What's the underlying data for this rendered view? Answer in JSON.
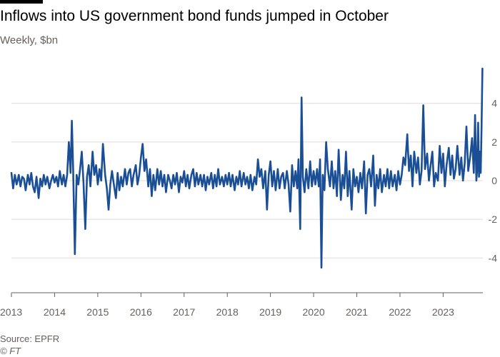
{
  "title": "Inflows into US government bond funds jumped in October",
  "subtitle": "Weekly, $bn",
  "source": "Source: EPFR",
  "credit": "© FT",
  "colors": {
    "line": "#1a4f96",
    "grid": "#e0dcd8",
    "axis": "#66605c",
    "text": "#66605c"
  },
  "chart_data": {
    "type": "line",
    "title": "Inflows into US government bond funds jumped in October",
    "subtitle": "Weekly, $bn",
    "xlabel": "",
    "ylabel": "",
    "xlim": [
      2013.0,
      2023.92
    ],
    "ylim": [
      -5.8,
      5.8
    ],
    "y_ticks": [
      -4,
      -2,
      0,
      2,
      4
    ],
    "y_tick_labels": [
      "-4",
      "-2",
      "0",
      "2",
      "4"
    ],
    "x_ticks": [
      2013,
      2014,
      2015,
      2016,
      2017,
      2018,
      2019,
      2020,
      2021,
      2022,
      2023
    ],
    "x_tick_labels": [
      "2013",
      "2014",
      "2015",
      "2016",
      "2017",
      "2018",
      "2019",
      "2020",
      "2021",
      "2022",
      "2023"
    ],
    "y_axis_side": "right",
    "grid": true,
    "series": [
      {
        "name": "",
        "points": [
          [
            2013.0,
            0.4
          ],
          [
            2013.04,
            -0.4
          ],
          [
            2013.08,
            0.3
          ],
          [
            2013.12,
            -0.2
          ],
          [
            2013.17,
            0.3
          ],
          [
            2013.21,
            -0.3
          ],
          [
            2013.25,
            0.2
          ],
          [
            2013.29,
            0.1
          ],
          [
            2013.33,
            -0.5
          ],
          [
            2013.38,
            0.3
          ],
          [
            2013.42,
            -0.2
          ],
          [
            2013.46,
            0.4
          ],
          [
            2013.5,
            -0.3
          ],
          [
            2013.54,
            -0.6
          ],
          [
            2013.58,
            0.2
          ],
          [
            2013.63,
            -0.9
          ],
          [
            2013.67,
            0.1
          ],
          [
            2013.71,
            -0.3
          ],
          [
            2013.75,
            0.3
          ],
          [
            2013.79,
            -0.2
          ],
          [
            2013.83,
            0.2
          ],
          [
            2013.88,
            -0.4
          ],
          [
            2013.92,
            0.0
          ],
          [
            2013.96,
            0.3
          ],
          [
            2014.0,
            -0.1
          ],
          [
            2014.04,
            0.2
          ],
          [
            2014.08,
            -0.3
          ],
          [
            2014.12,
            0.5
          ],
          [
            2014.17,
            -0.2
          ],
          [
            2014.21,
            0.3
          ],
          [
            2014.25,
            -0.3
          ],
          [
            2014.29,
            0.3
          ],
          [
            2014.33,
            2.0
          ],
          [
            2014.37,
            0.4
          ],
          [
            2014.4,
            3.1
          ],
          [
            2014.43,
            0.6
          ],
          [
            2014.47,
            -3.8
          ],
          [
            2014.51,
            0.3
          ],
          [
            2014.55,
            -0.2
          ],
          [
            2014.59,
            0.6
          ],
          [
            2014.63,
            1.5
          ],
          [
            2014.67,
            -0.1
          ],
          [
            2014.71,
            -2.5
          ],
          [
            2014.75,
            0.2
          ],
          [
            2014.79,
            0.8
          ],
          [
            2014.83,
            -0.3
          ],
          [
            2014.88,
            1.5
          ],
          [
            2014.92,
            0.3
          ],
          [
            2014.96,
            0.8
          ],
          [
            2015.0,
            -0.2
          ],
          [
            2015.04,
            0.6
          ],
          [
            2015.08,
            0.0
          ],
          [
            2015.12,
            1.9
          ],
          [
            2015.17,
            0.3
          ],
          [
            2015.21,
            -0.4
          ],
          [
            2015.25,
            -1.5
          ],
          [
            2015.29,
            -0.2
          ],
          [
            2015.33,
            0.5
          ],
          [
            2015.38,
            -0.3
          ],
          [
            2015.42,
            -0.9
          ],
          [
            2015.46,
            0.4
          ],
          [
            2015.5,
            -0.5
          ],
          [
            2015.54,
            0.2
          ],
          [
            2015.58,
            -0.3
          ],
          [
            2015.63,
            0.6
          ],
          [
            2015.67,
            -0.2
          ],
          [
            2015.71,
            0.4
          ],
          [
            2015.75,
            0.6
          ],
          [
            2015.79,
            -0.3
          ],
          [
            2015.83,
            0.3
          ],
          [
            2015.88,
            0.8
          ],
          [
            2015.92,
            -0.2
          ],
          [
            2015.96,
            0.3
          ],
          [
            2016.0,
            1.2
          ],
          [
            2016.04,
            1.9
          ],
          [
            2016.08,
            0.5
          ],
          [
            2016.12,
            1.1
          ],
          [
            2016.17,
            -0.3
          ],
          [
            2016.21,
            0.6
          ],
          [
            2016.25,
            -0.8
          ],
          [
            2016.29,
            0.3
          ],
          [
            2016.33,
            -0.5
          ],
          [
            2016.38,
            0.6
          ],
          [
            2016.42,
            -0.2
          ],
          [
            2016.46,
            0.5
          ],
          [
            2016.5,
            -0.3
          ],
          [
            2016.54,
            0.3
          ],
          [
            2016.58,
            -0.6
          ],
          [
            2016.63,
            0.3
          ],
          [
            2016.67,
            0.0
          ],
          [
            2016.71,
            -0.4
          ],
          [
            2016.75,
            0.3
          ],
          [
            2016.79,
            -0.2
          ],
          [
            2016.83,
            0.4
          ],
          [
            2016.88,
            -0.6
          ],
          [
            2016.92,
            0.2
          ],
          [
            2016.96,
            -0.1
          ],
          [
            2017.0,
            0.5
          ],
          [
            2017.04,
            -0.3
          ],
          [
            2017.08,
            0.3
          ],
          [
            2017.12,
            -0.4
          ],
          [
            2017.17,
            0.3
          ],
          [
            2017.21,
            0.6
          ],
          [
            2017.25,
            -0.3
          ],
          [
            2017.29,
            0.4
          ],
          [
            2017.33,
            -0.2
          ],
          [
            2017.38,
            0.3
          ],
          [
            2017.42,
            -0.3
          ],
          [
            2017.46,
            0.3
          ],
          [
            2017.5,
            -0.5
          ],
          [
            2017.54,
            0.2
          ],
          [
            2017.58,
            -0.2
          ],
          [
            2017.63,
            0.4
          ],
          [
            2017.67,
            -0.4
          ],
          [
            2017.71,
            0.3
          ],
          [
            2017.75,
            -0.3
          ],
          [
            2017.79,
            0.6
          ],
          [
            2017.83,
            -0.2
          ],
          [
            2017.88,
            0.2
          ],
          [
            2017.92,
            -0.3
          ],
          [
            2017.96,
            0.3
          ],
          [
            2018.0,
            -0.2
          ],
          [
            2018.04,
            0.4
          ],
          [
            2018.08,
            -0.3
          ],
          [
            2018.12,
            0.3
          ],
          [
            2018.17,
            -0.5
          ],
          [
            2018.21,
            0.2
          ],
          [
            2018.25,
            -0.2
          ],
          [
            2018.29,
            0.5
          ],
          [
            2018.33,
            -0.3
          ],
          [
            2018.38,
            0.4
          ],
          [
            2018.42,
            -0.2
          ],
          [
            2018.46,
            0.2
          ],
          [
            2018.5,
            -0.4
          ],
          [
            2018.54,
            0.3
          ],
          [
            2018.58,
            -0.5
          ],
          [
            2018.63,
            0.2
          ],
          [
            2018.67,
            -0.2
          ],
          [
            2018.71,
            1.1
          ],
          [
            2018.75,
            0.2
          ],
          [
            2018.79,
            0.6
          ],
          [
            2018.83,
            -0.4
          ],
          [
            2018.88,
            0.5
          ],
          [
            2018.92,
            -1.5
          ],
          [
            2018.96,
            0.3
          ],
          [
            2019.0,
            1.0
          ],
          [
            2019.04,
            -0.3
          ],
          [
            2019.08,
            0.5
          ],
          [
            2019.12,
            -0.5
          ],
          [
            2019.17,
            0.6
          ],
          [
            2019.21,
            -0.4
          ],
          [
            2019.25,
            0.2
          ],
          [
            2019.29,
            0.4
          ],
          [
            2019.33,
            -0.4
          ],
          [
            2019.38,
            0.5
          ],
          [
            2019.42,
            -0.2
          ],
          [
            2019.46,
            -1.6
          ],
          [
            2019.5,
            0.8
          ],
          [
            2019.54,
            -0.3
          ],
          [
            2019.58,
            0.5
          ],
          [
            2019.62,
            -0.4
          ],
          [
            2019.65,
            1.1
          ],
          [
            2019.69,
            -2.5
          ],
          [
            2019.72,
            4.3
          ],
          [
            2019.75,
            0.2
          ],
          [
            2019.79,
            -0.6
          ],
          [
            2019.83,
            0.6
          ],
          [
            2019.88,
            -0.4
          ],
          [
            2019.92,
            1.0
          ],
          [
            2019.96,
            -0.3
          ],
          [
            2020.0,
            0.5
          ],
          [
            2020.04,
            -0.2
          ],
          [
            2020.08,
            0.6
          ],
          [
            2020.12,
            -0.3
          ],
          [
            2020.15,
            1.1
          ],
          [
            2020.18,
            -4.5
          ],
          [
            2020.21,
            0.3
          ],
          [
            2020.25,
            -0.5
          ],
          [
            2020.29,
            2.0
          ],
          [
            2020.33,
            0.6
          ],
          [
            2020.38,
            -0.3
          ],
          [
            2020.42,
            1.0
          ],
          [
            2020.46,
            -0.4
          ],
          [
            2020.5,
            0.5
          ],
          [
            2020.54,
            -0.8
          ],
          [
            2020.58,
            1.6
          ],
          [
            2020.63,
            -1.0
          ],
          [
            2020.67,
            0.3
          ],
          [
            2020.71,
            -0.4
          ],
          [
            2020.75,
            1.5
          ],
          [
            2020.79,
            -0.8
          ],
          [
            2020.83,
            0.5
          ],
          [
            2020.88,
            -1.5
          ],
          [
            2020.92,
            0.6
          ],
          [
            2020.96,
            -0.3
          ],
          [
            2021.0,
            0.2
          ],
          [
            2021.04,
            -0.6
          ],
          [
            2021.08,
            0.4
          ],
          [
            2021.12,
            -0.4
          ],
          [
            2021.17,
            1.0
          ],
          [
            2021.21,
            -1.7
          ],
          [
            2021.25,
            0.3
          ],
          [
            2021.29,
            0.6
          ],
          [
            2021.33,
            -0.3
          ],
          [
            2021.38,
            1.3
          ],
          [
            2021.42,
            -1.3
          ],
          [
            2021.46,
            0.3
          ],
          [
            2021.5,
            -0.4
          ],
          [
            2021.54,
            0.6
          ],
          [
            2021.58,
            -0.6
          ],
          [
            2021.63,
            0.3
          ],
          [
            2021.67,
            -0.3
          ],
          [
            2021.71,
            0.6
          ],
          [
            2021.75,
            -0.4
          ],
          [
            2021.79,
            0.5
          ],
          [
            2021.83,
            -0.3
          ],
          [
            2021.88,
            0.3
          ],
          [
            2021.92,
            -0.5
          ],
          [
            2021.96,
            0.5
          ],
          [
            2022.0,
            -0.2
          ],
          [
            2022.04,
            0.3
          ],
          [
            2022.08,
            1.2
          ],
          [
            2022.12,
            0.8
          ],
          [
            2022.17,
            2.4
          ],
          [
            2022.21,
            0.5
          ],
          [
            2022.25,
            1.3
          ],
          [
            2022.29,
            -0.3
          ],
          [
            2022.33,
            1.5
          ],
          [
            2022.38,
            0.4
          ],
          [
            2022.42,
            1.2
          ],
          [
            2022.46,
            -0.2
          ],
          [
            2022.5,
            0.5
          ],
          [
            2022.54,
            3.9
          ],
          [
            2022.58,
            0.6
          ],
          [
            2022.63,
            1.4
          ],
          [
            2022.67,
            0.0
          ],
          [
            2022.71,
            0.8
          ],
          [
            2022.75,
            1.5
          ],
          [
            2022.79,
            -0.3
          ],
          [
            2022.83,
            0.4
          ],
          [
            2022.88,
            0.0
          ],
          [
            2022.92,
            1.8
          ],
          [
            2022.96,
            0.4
          ],
          [
            2023.0,
            1.4
          ],
          [
            2023.04,
            -0.3
          ],
          [
            2023.08,
            0.8
          ],
          [
            2023.13,
            1.7
          ],
          [
            2023.17,
            0.3
          ],
          [
            2023.21,
            1.3
          ],
          [
            2023.25,
            0.1
          ],
          [
            2023.29,
            0.6
          ],
          [
            2023.33,
            1.8
          ],
          [
            2023.38,
            0.3
          ],
          [
            2023.42,
            1.2
          ],
          [
            2023.46,
            0.0
          ],
          [
            2023.5,
            0.9
          ],
          [
            2023.54,
            2.8
          ],
          [
            2023.58,
            0.5
          ],
          [
            2023.63,
            1.3
          ],
          [
            2023.67,
            2.2
          ],
          [
            2023.71,
            0.4
          ],
          [
            2023.74,
            3.4
          ],
          [
            2023.77,
            0.0
          ],
          [
            2023.79,
            0.6
          ],
          [
            2023.81,
            3.0
          ],
          [
            2023.83,
            0.2
          ],
          [
            2023.85,
            1.5
          ],
          [
            2023.87,
            0.4
          ],
          [
            2023.89,
            2.8
          ],
          [
            2023.91,
            5.8
          ]
        ]
      }
    ]
  }
}
